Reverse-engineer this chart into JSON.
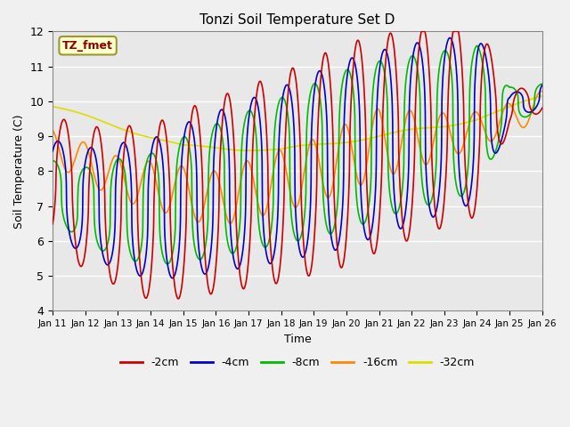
{
  "title": "Tonzi Soil Temperature Set D",
  "xlabel": "Time",
  "ylabel": "Soil Temperature (C)",
  "ylim": [
    4.0,
    12.0
  ],
  "yticks": [
    4.0,
    5.0,
    6.0,
    7.0,
    8.0,
    9.0,
    10.0,
    11.0,
    12.0
  ],
  "xtick_labels": [
    "Jan 11",
    "Jan 12",
    "Jan 13",
    "Jan 14",
    "Jan 15",
    "Jan 16",
    "Jan 17",
    "Jan 18",
    "Jan 19",
    "Jan 20",
    "Jan 21",
    "Jan 22",
    "Jan 23",
    "Jan 24",
    "Jan 25",
    "Jan 26"
  ],
  "bg_color": "#e8e8e8",
  "fig_color": "#f0f0f0",
  "grid_color": "#ffffff",
  "series": {
    "-2cm": {
      "color": "#cc0000"
    },
    "-4cm": {
      "color": "#0000cc"
    },
    "-8cm": {
      "color": "#00bb00"
    },
    "-16cm": {
      "color": "#ff8800"
    },
    "-32cm": {
      "color": "#dddd00"
    }
  },
  "annotation_text": "TZ_fmet",
  "annotation_color": "#8b0000",
  "annotation_bg": "#ffffcc",
  "annotation_border": "#999933"
}
